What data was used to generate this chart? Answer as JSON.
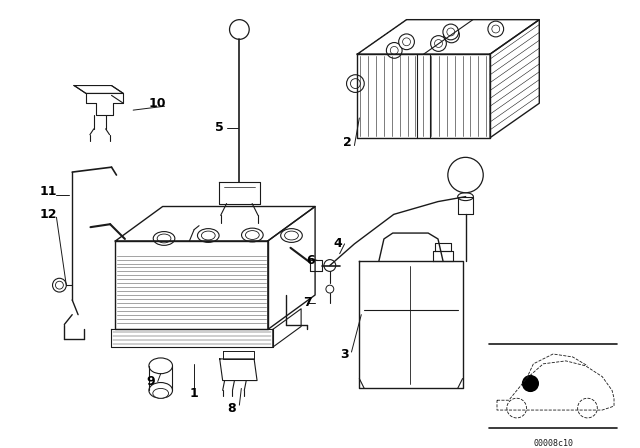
{
  "bg_color": "#ffffff",
  "line_color": "#1a1a1a",
  "fig_width": 6.4,
  "fig_height": 4.48,
  "dpi": 100,
  "part_number": "00008c10"
}
